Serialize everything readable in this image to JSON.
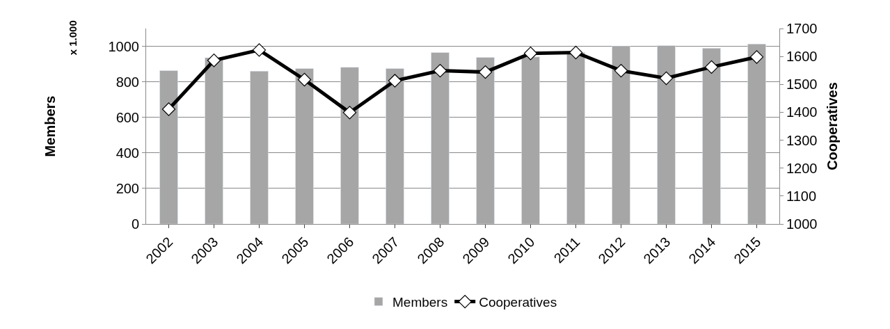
{
  "chart_data": {
    "type": "bar",
    "categories": [
      "2002",
      "2003",
      "2004",
      "2005",
      "2006",
      "2007",
      "2008",
      "2009",
      "2010",
      "2011",
      "2012",
      "2013",
      "2014",
      "2015"
    ],
    "series": [
      {
        "name": "Members",
        "color": "#a6a6a6",
        "values": [
          863,
          936,
          860,
          875,
          882,
          875,
          965,
          938,
          940,
          965,
          1002,
          1004,
          989,
          1013
        ]
      },
      {
        "name": "Cooperatives",
        "type": "line",
        "axis": "y2",
        "color": "#000000",
        "marker": "diamond",
        "values": [
          1411,
          1586,
          1623,
          1517,
          1399,
          1513,
          1549,
          1544,
          1611,
          1614,
          1549,
          1522,
          1562,
          1598
        ]
      }
    ],
    "ylabel": "Members",
    "y2label": "Cooperatives",
    "annotations": [
      "x 1.000"
    ],
    "ylim": [
      0,
      1100
    ],
    "yticks": [
      0,
      200,
      400,
      600,
      800,
      1000
    ],
    "y2lim": [
      1000,
      1700
    ],
    "y2ticks": [
      1000,
      1100,
      1200,
      1300,
      1400,
      1500,
      1600,
      1700
    ],
    "grid": "y",
    "legend": "bottom"
  }
}
